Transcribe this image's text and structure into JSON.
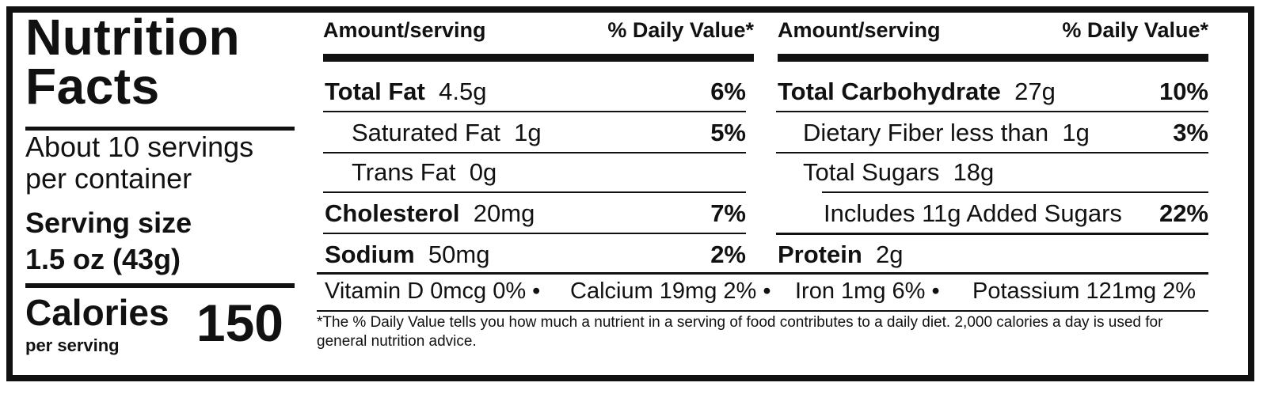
{
  "left": {
    "title_line1": "Nutrition",
    "title_line2": "Facts",
    "servings_line1": "About 10 servings",
    "servings_line2": "per container",
    "serving_size_label": "Serving size",
    "serving_size_value": "1.5 oz (43g)",
    "calories_label": "Calories",
    "calories_sub": "per serving",
    "calories_value": "150"
  },
  "header": {
    "amount": "Amount/serving",
    "daily_value": "% Daily Value*"
  },
  "col1": [
    {
      "name": "Total Fat",
      "amount": "4.5g",
      "dv": "6%"
    },
    {
      "name": "Saturated Fat",
      "amount": "1g",
      "dv": "5%"
    },
    {
      "name": "Trans Fat",
      "amount": "0g",
      "dv": ""
    },
    {
      "name": "Cholesterol",
      "amount": "20mg",
      "dv": "7%"
    },
    {
      "name": "Sodium",
      "amount": "50mg",
      "dv": "2%"
    }
  ],
  "col2": [
    {
      "name": "Total Carbohydrate",
      "amount": "27g",
      "dv": "10%"
    },
    {
      "name": "Dietary Fiber less than",
      "amount": "1g",
      "dv": "3%"
    },
    {
      "name": "Total Sugars",
      "amount": "18g",
      "dv": ""
    },
    {
      "name": "Includes",
      "amount": "11g Added Sugars",
      "dv": "22%"
    },
    {
      "name": "Protein",
      "amount": "2g",
      "dv": ""
    }
  ],
  "vitamins": {
    "vitd": "Vitamin D 0mcg 0% •",
    "calcium": "Calcium 19mg 2% •",
    "iron": "Iron 1mg 6% •",
    "potassium": "Potassium 121mg 2%"
  },
  "footnote": "*The % Daily Value tells you how much a nutrient in a serving of food contributes to a daily diet. 2,000 calories a day is used for general nutrition advice."
}
